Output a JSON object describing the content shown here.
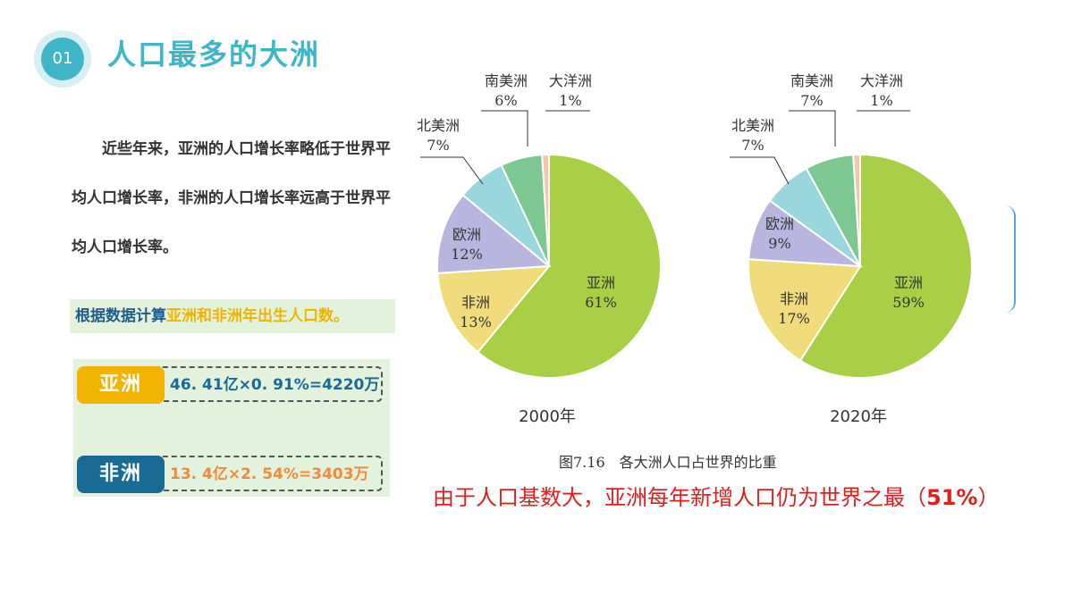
{
  "header": {
    "badge": "01",
    "title": "人口最多的大洲"
  },
  "intro": "近些年来，亚洲的人口增长率略低于世界平均人口增长率，非洲的人口增长率远高于世界平均人口增长率。",
  "calc": {
    "banner_part1": "根据数据计算",
    "banner_part2": "亚洲和非洲年出生人口数。",
    "rows": [
      {
        "tag": "亚洲",
        "formula": "46. 41亿×0. 91%=4220万"
      },
      {
        "tag": "非洲",
        "formula": "13. 4亿×2. 54%=3403万"
      }
    ]
  },
  "caption": "图7.16　各大洲人口占世界的比重",
  "conclusion": {
    "text": "由于人口基数大，亚洲每年新增人口仍为世界之最（",
    "highlight": "51%",
    "end": "）"
  },
  "colors": {
    "亚洲": "#a8cf45",
    "非洲": "#f1dc7c",
    "欧洲": "#b8b6de",
    "北美洲": "#9ad6dd",
    "南美洲": "#7cc890",
    "大洋洲": "#f2c8a8"
  },
  "chart_data": [
    {
      "type": "pie",
      "title": "2000年",
      "slices": [
        {
          "label": "亚洲",
          "value": 61,
          "text": "61%"
        },
        {
          "label": "非洲",
          "value": 13,
          "text": "13%"
        },
        {
          "label": "欧洲",
          "value": 12,
          "text": "12%"
        },
        {
          "label": "北美洲",
          "value": 7,
          "text": "7%"
        },
        {
          "label": "南美洲",
          "value": 6,
          "text": "6%"
        },
        {
          "label": "大洋洲",
          "value": 1,
          "text": "1%"
        }
      ]
    },
    {
      "type": "pie",
      "title": "2020年",
      "slices": [
        {
          "label": "亚洲",
          "value": 59,
          "text": "59%"
        },
        {
          "label": "非洲",
          "value": 17,
          "text": "17%"
        },
        {
          "label": "欧洲",
          "value": 9,
          "text": "9%"
        },
        {
          "label": "北美洲",
          "value": 7,
          "text": "7%"
        },
        {
          "label": "南美洲",
          "value": 7,
          "text": "7%"
        },
        {
          "label": "大洋洲",
          "value": 1,
          "text": "1%"
        }
      ]
    }
  ]
}
